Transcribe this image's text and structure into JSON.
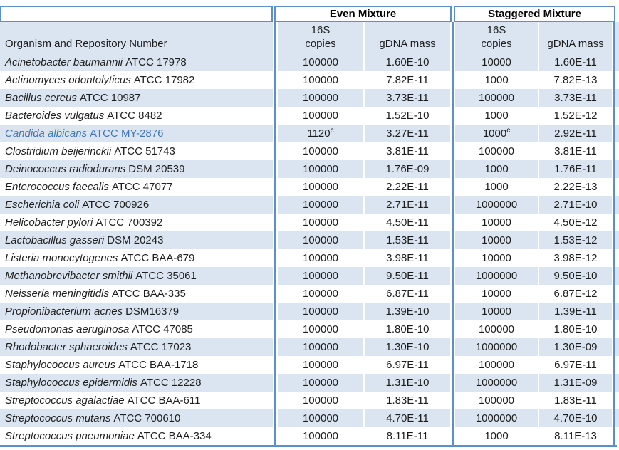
{
  "table": {
    "group_headers": {
      "even": "Even Mixture",
      "staggered": "Staggered Mixture"
    },
    "organism_header": "Organism and Repository Number",
    "subheaders": {
      "copies_line1": "16S",
      "copies_line2": "copies",
      "gdna": "gDNA mass"
    },
    "colors": {
      "stripe": "#dbe5f1",
      "border": "#5e8fc6",
      "text": "#1c1c1c",
      "highlight_text": "#3f76b8"
    },
    "rows": [
      {
        "name_i": "Acinetobacter baumannii",
        "name_r": "ATCC 17978",
        "ec": "100000",
        "eg": "1.60E-10",
        "sc": "10000",
        "sg": "1.60E-11"
      },
      {
        "name_i": "Actinomyces odontolyticus",
        "name_r": "ATCC 17982",
        "ec": "100000",
        "eg": "7.82E-11",
        "sc": "1000",
        "sg": "7.82E-13"
      },
      {
        "name_i": "Bacillus cereus",
        "name_r": "ATCC 10987",
        "ec": "100000",
        "eg": "3.73E-11",
        "sc": "100000",
        "sg": "3.73E-11"
      },
      {
        "name_i": "Bacteroides vulgatus",
        "name_r": "ATCC 8482",
        "ec": "100000",
        "eg": "1.52E-10",
        "sc": "1000",
        "sg": "1.52E-12"
      },
      {
        "name_i": "Candida albicans",
        "name_r": "ATCC MY-2876",
        "ec": "1120",
        "ec_sup": "c",
        "eg": "3.27E-11",
        "sc": "1000",
        "sc_sup": "c",
        "sg": "2.92E-11",
        "highlight": true
      },
      {
        "name_i": "Clostridium beijerinckii",
        "name_r": "ATCC 51743",
        "ec": "100000",
        "eg": "3.81E-11",
        "sc": "100000",
        "sg": "3.81E-11"
      },
      {
        "name_i": "Deinococcus radiodurans",
        "name_r": "DSM 20539",
        "ec": "100000",
        "eg": "1.76E-09",
        "sc": "1000",
        "sg": "1.76E-11"
      },
      {
        "name_i": "Enterococcus faecalis",
        "name_r": "ATCC 47077",
        "ec": "100000",
        "eg": "2.22E-11",
        "sc": "1000",
        "sg": "2.22E-13"
      },
      {
        "name_i": "Escherichia coli",
        "name_r": "ATCC 700926",
        "ec": "100000",
        "eg": "2.71E-11",
        "sc": "1000000",
        "sg": "2.71E-10"
      },
      {
        "name_i": "Helicobacter pylori",
        "name_r": "ATCC 700392",
        "ec": "100000",
        "eg": "4.50E-11",
        "sc": "10000",
        "sg": "4.50E-12"
      },
      {
        "name_i": "Lactobacillus gasseri",
        "name_r": "DSM 20243",
        "ec": "100000",
        "eg": "1.53E-11",
        "sc": "10000",
        "sg": "1.53E-12"
      },
      {
        "name_i": "Listeria monocytogenes",
        "name_r": "ATCC BAA-679",
        "ec": "100000",
        "eg": "3.98E-11",
        "sc": "10000",
        "sg": "3.98E-12"
      },
      {
        "name_i": "Methanobrevibacter smithii",
        "name_r": "ATCC 35061",
        "ec": "100000",
        "eg": "9.50E-11",
        "sc": "1000000",
        "sg": "9.50E-10"
      },
      {
        "name_i": "Neisseria meningitidis",
        "name_r": "ATCC BAA-335",
        "ec": "100000",
        "eg": "6.87E-11",
        "sc": "10000",
        "sg": "6.87E-12"
      },
      {
        "name_i": "Propionibacterium acnes",
        "name_r": "DSM16379",
        "ec": "100000",
        "eg": "1.39E-10",
        "sc": "10000",
        "sg": "1.39E-11"
      },
      {
        "name_i": "Pseudomonas aeruginosa",
        "name_r": "ATCC 47085",
        "ec": "100000",
        "eg": "1.80E-10",
        "sc": "100000",
        "sg": "1.80E-10"
      },
      {
        "name_i": "Rhodobacter sphaeroides",
        "name_r": "ATCC 17023",
        "ec": "100000",
        "eg": "1.30E-10",
        "sc": "1000000",
        "sg": "1.30E-09"
      },
      {
        "name_i": "Staphylococcus aureus",
        "name_r": "ATCC BAA-1718",
        "ec": "100000",
        "eg": "6.97E-11",
        "sc": "100000",
        "sg": "6.97E-11"
      },
      {
        "name_i": "Staphylococcus epidermidis",
        "name_r": "ATCC 12228",
        "ec": "100000",
        "eg": "1.31E-10",
        "sc": "1000000",
        "sg": "1.31E-09"
      },
      {
        "name_i": "Streptococcus agalactiae",
        "name_r": "ATCC BAA-611",
        "ec": "100000",
        "eg": "1.83E-11",
        "sc": "100000",
        "sg": "1.83E-11"
      },
      {
        "name_i": "Streptococcus mutans",
        "name_r": "ATCC 700610",
        "ec": "100000",
        "eg": "4.70E-11",
        "sc": "1000000",
        "sg": "4.70E-10"
      },
      {
        "name_i": "Streptococcus pneumoniae",
        "name_r": "ATCC BAA-334",
        "ec": "100000",
        "eg": "8.11E-11",
        "sc": "1000",
        "sg": "8.11E-13"
      }
    ]
  }
}
